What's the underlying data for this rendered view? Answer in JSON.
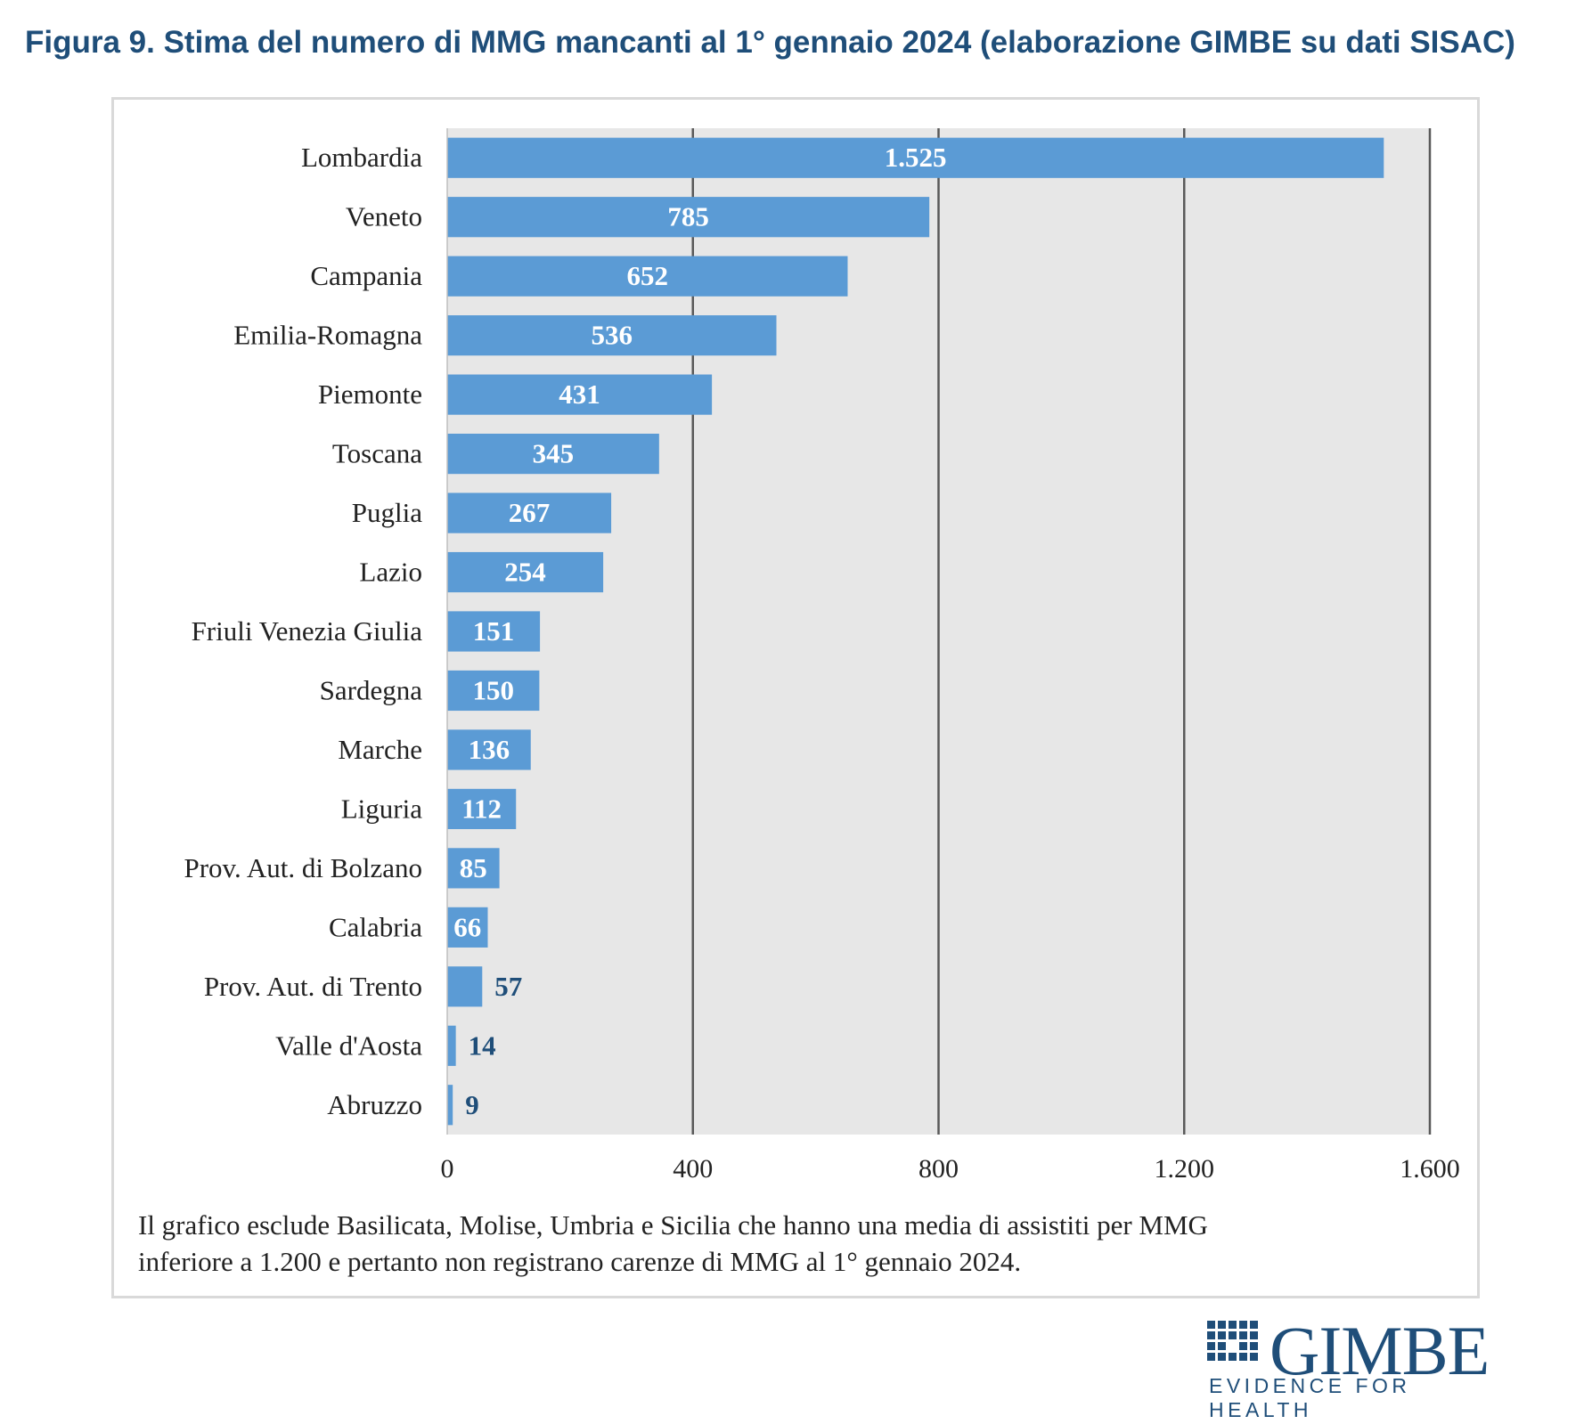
{
  "figure_title": "Figura 9. Stima del numero di MMG mancanti al 1° gennaio 2024 (elaborazione GIMBE su dati SISAC)",
  "note": {
    "line1": "Il grafico esclude Basilicata, Molise, Umbria e Sicilia che hanno una media di assistiti per MMG",
    "line2": "inferiore a 1.200 e pertanto non registrano carenze di MMG al 1° gennaio 2024."
  },
  "logo": {
    "name": "GIMBE",
    "tagline": "EVIDENCE FOR HEALTH"
  },
  "colors": {
    "bar": "#5b9bd5",
    "plot_bg": "#e7e7e7",
    "grid": "#595959",
    "title": "#1f4e79",
    "label_outside": "#1f4e79",
    "label_inside": "#ffffff"
  },
  "chart_data": {
    "type": "bar",
    "orientation": "horizontal",
    "title": "Stima del numero di MMG mancanti al 1° gennaio 2024",
    "xlabel": "",
    "ylabel": "",
    "xlim": [
      0,
      1600
    ],
    "grid": true,
    "legend": "none",
    "categories": [
      "Lombardia",
      "Veneto",
      "Campania",
      "Emilia-Romagna",
      "Piemonte",
      "Toscana",
      "Puglia",
      "Lazio",
      "Friuli Venezia Giulia",
      "Sardegna",
      "Marche",
      "Liguria",
      "Prov. Aut. di Bolzano",
      "Calabria",
      "Prov. Aut. di Trento",
      "Valle d'Aosta",
      "Abruzzo"
    ],
    "values": [
      1525,
      785,
      652,
      536,
      431,
      345,
      267,
      254,
      151,
      150,
      136,
      112,
      85,
      66,
      57,
      14,
      9
    ],
    "value_labels": [
      "1.525",
      "785",
      "652",
      "536",
      "431",
      "345",
      "267",
      "254",
      "151",
      "150",
      "136",
      "112",
      "85",
      "66",
      "57",
      "14",
      "9"
    ],
    "x_ticks": [
      0,
      400,
      800,
      1200,
      1600
    ],
    "x_tick_labels": [
      "0",
      "400",
      "800",
      "1.200",
      "1.600"
    ]
  }
}
